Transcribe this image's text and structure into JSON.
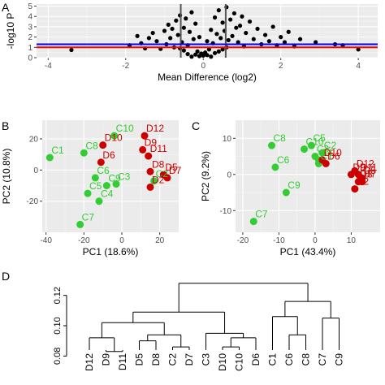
{
  "figure": {
    "colors": {
      "panel_bg": "#ebebeb",
      "grid_major": "#ffffff",
      "grid_minor": "#f5f5f5",
      "point_black": "#000000",
      "group_c": "#33cc33",
      "group_d": "#cc0000",
      "line_blue": "#0000ff",
      "line_red": "#ff0000",
      "vline_gray": "#555555",
      "tick_text": "#4d4d4d",
      "axis_text": "#000000"
    }
  },
  "chart_data": [
    {
      "panel": "A",
      "type": "scatter",
      "title": "",
      "xlabel": "Mean Difference (log2)",
      "ylabel": "-log10 P",
      "xlim": [
        -4.3,
        4.5
      ],
      "ylim": [
        0,
        5.2
      ],
      "xticks": [
        -4,
        -2,
        0,
        2,
        4
      ],
      "yticks": [
        0,
        1,
        2,
        3,
        4,
        5
      ],
      "grid": true,
      "hlines": [
        {
          "y": 1.3,
          "color": "#0000ff"
        },
        {
          "y": 1.0,
          "color": "#ff0000"
        }
      ],
      "vlines": [
        {
          "x": -0.58,
          "color": "#555555"
        },
        {
          "x": 0.58,
          "color": "#555555"
        }
      ],
      "points": [
        [
          -3.4,
          0.75
        ],
        [
          -1.9,
          1.2
        ],
        [
          -1.7,
          2.1
        ],
        [
          -1.6,
          1.4
        ],
        [
          -1.5,
          0.9
        ],
        [
          -1.4,
          1.9
        ],
        [
          -1.3,
          2.4
        ],
        [
          -1.2,
          1.6
        ],
        [
          -1.1,
          0.85
        ],
        [
          -1.0,
          2.6
        ],
        [
          -0.95,
          1.3
        ],
        [
          -0.9,
          3.2
        ],
        [
          -0.85,
          1.9
        ],
        [
          -0.8,
          2.8
        ],
        [
          -0.75,
          1.0
        ],
        [
          -0.7,
          3.6
        ],
        [
          -0.65,
          2.2
        ],
        [
          -0.6,
          4.1
        ],
        [
          -0.55,
          1.5
        ],
        [
          -0.5,
          2.9
        ],
        [
          -0.45,
          3.8
        ],
        [
          -0.4,
          1.2
        ],
        [
          -0.35,
          2.5
        ],
        [
          -0.3,
          4.4
        ],
        [
          -0.25,
          1.8
        ],
        [
          -0.2,
          3.3
        ],
        [
          -0.15,
          0.6
        ],
        [
          -0.1,
          2.0
        ],
        [
          -0.05,
          0.4
        ],
        [
          0.0,
          0.2
        ],
        [
          0.05,
          0.5
        ],
        [
          0.1,
          1.6
        ],
        [
          0.15,
          0.8
        ],
        [
          0.2,
          2.7
        ],
        [
          0.25,
          1.4
        ],
        [
          0.3,
          3.9
        ],
        [
          0.35,
          2.3
        ],
        [
          0.4,
          4.6
        ],
        [
          0.45,
          1.9
        ],
        [
          0.5,
          3.4
        ],
        [
          0.55,
          2.6
        ],
        [
          0.6,
          4.9
        ],
        [
          0.65,
          1.7
        ],
        [
          0.7,
          3.7
        ],
        [
          0.75,
          2.1
        ],
        [
          0.8,
          4.3
        ],
        [
          0.85,
          2.9
        ],
        [
          0.9,
          1.5
        ],
        [
          0.95,
          3.1
        ],
        [
          1.0,
          4.0
        ],
        [
          1.05,
          1.1
        ],
        [
          1.1,
          2.4
        ],
        [
          1.2,
          3.5
        ],
        [
          1.3,
          1.8
        ],
        [
          1.4,
          2.8
        ],
        [
          1.5,
          1.3
        ],
        [
          1.6,
          2.2
        ],
        [
          1.7,
          1.6
        ],
        [
          1.8,
          3.0
        ],
        [
          1.9,
          1.2
        ],
        [
          2.0,
          2.0
        ],
        [
          2.1,
          1.5
        ],
        [
          2.2,
          2.5
        ],
        [
          2.35,
          1.1
        ],
        [
          2.5,
          1.8
        ],
        [
          2.9,
          1.5
        ],
        [
          3.4,
          1.3
        ],
        [
          3.6,
          1.2
        ],
        [
          4.0,
          0.8
        ],
        [
          -0.3,
          0.1
        ],
        [
          -0.2,
          0.3
        ],
        [
          -0.1,
          0.15
        ],
        [
          0.1,
          0.25
        ],
        [
          0.2,
          0.1
        ],
        [
          0.3,
          0.45
        ],
        [
          -0.4,
          0.35
        ],
        [
          0.4,
          0.6
        ],
        [
          -0.5,
          0.7
        ],
        [
          0.5,
          0.8
        ],
        [
          -0.6,
          0.9
        ],
        [
          0.6,
          1.0
        ]
      ]
    },
    {
      "panel": "B",
      "type": "scatter",
      "title": "",
      "xlabel": "PC1 (18.6%)",
      "ylabel": "PC2 (10.8%)",
      "xlim": [
        -42,
        30
      ],
      "ylim": [
        -40,
        32
      ],
      "xticks": [
        -40,
        -20,
        0,
        20
      ],
      "yticks": [
        -20,
        0,
        20
      ],
      "grid": true,
      "points": [
        {
          "label": "C1",
          "x": -38,
          "y": 8,
          "group": "C"
        },
        {
          "label": "C8",
          "x": -20,
          "y": 11,
          "group": "C"
        },
        {
          "label": "C10",
          "x": -4,
          "y": 22,
          "group": "C"
        },
        {
          "label": "C6",
          "x": -14,
          "y": -5,
          "group": "C"
        },
        {
          "label": "C9",
          "x": -8,
          "y": -10,
          "group": "C"
        },
        {
          "label": "C3",
          "x": -3,
          "y": -9,
          "group": "C"
        },
        {
          "label": "C2",
          "x": 17,
          "y": -7,
          "group": "C"
        },
        {
          "label": "C7",
          "x": -22,
          "y": -35,
          "group": "C"
        },
        {
          "label": "C5",
          "x": -18,
          "y": -15,
          "group": "C"
        },
        {
          "label": "C4",
          "x": -12,
          "y": -20,
          "group": "C"
        },
        {
          "label": "D10",
          "x": -10,
          "y": 16,
          "group": "D"
        },
        {
          "label": "D6",
          "x": -11,
          "y": 5,
          "group": "D"
        },
        {
          "label": "D12",
          "x": 12,
          "y": 22,
          "group": "D"
        },
        {
          "label": "D9",
          "x": 11,
          "y": 13,
          "group": "D"
        },
        {
          "label": "D11",
          "x": 14,
          "y": 9,
          "group": "D"
        },
        {
          "label": "D8",
          "x": 15,
          "y": -1,
          "group": "D"
        },
        {
          "label": "D5",
          "x": 22,
          "y": -3,
          "group": "D"
        },
        {
          "label": "D7",
          "x": 24,
          "y": -5,
          "group": "D"
        },
        {
          "label": "D2",
          "x": 15,
          "y": -11,
          "group": "D"
        }
      ]
    },
    {
      "panel": "C",
      "type": "scatter",
      "title": "",
      "xlabel": "PC1 (43.4%)",
      "ylabel": "PC2 (9.2%)",
      "xlim": [
        -22,
        18
      ],
      "ylim": [
        -16,
        15
      ],
      "xticks": [
        -20,
        -10,
        0,
        10
      ],
      "yticks": [
        -10,
        0,
        10
      ],
      "grid": true,
      "points": [
        {
          "label": "C8",
          "x": -12,
          "y": 8,
          "group": "C"
        },
        {
          "label": "C6",
          "x": -11,
          "y": 2,
          "group": "C"
        },
        {
          "label": "C9",
          "x": -8,
          "y": -5,
          "group": "C"
        },
        {
          "label": "C7",
          "x": -17,
          "y": -13,
          "group": "C"
        },
        {
          "label": "C10",
          "x": -3,
          "y": 7,
          "group": "C"
        },
        {
          "label": "C5",
          "x": -1,
          "y": 8,
          "group": "C"
        },
        {
          "label": "C3",
          "x": 0,
          "y": 5,
          "group": "C"
        },
        {
          "label": "C1",
          "x": 1,
          "y": 3,
          "group": "C"
        },
        {
          "label": "C2",
          "x": 2,
          "y": 6,
          "group": "C"
        },
        {
          "label": "C4",
          "x": 1,
          "y": 4,
          "group": "C"
        },
        {
          "label": "D10",
          "x": 2,
          "y": 4,
          "group": "D"
        },
        {
          "label": "D6",
          "x": 3,
          "y": 3,
          "group": "D"
        },
        {
          "label": "D12",
          "x": 11,
          "y": 1,
          "group": "D"
        },
        {
          "label": "D5",
          "x": 13,
          "y": -1,
          "group": "D"
        },
        {
          "label": "D11",
          "x": 12,
          "y": 0,
          "group": "D"
        },
        {
          "label": "D9",
          "x": 10,
          "y": 0,
          "group": "D"
        },
        {
          "label": "D8",
          "x": 12,
          "y": -2,
          "group": "D"
        },
        {
          "label": "D7",
          "x": 13,
          "y": -2,
          "group": "D"
        },
        {
          "label": "D2",
          "x": 11,
          "y": -4,
          "group": "D"
        }
      ]
    },
    {
      "panel": "D",
      "type": "dendrogram",
      "title": "",
      "xlabel": "",
      "ylabel": "",
      "ylim": [
        0.07,
        0.13
      ],
      "yticks": [
        0.08,
        0.1,
        0.12
      ],
      "leaves": [
        "D12",
        "D9",
        "D11",
        "D5",
        "D8",
        "C2",
        "D7",
        "C3",
        "D10",
        "C10",
        "D6",
        "C1",
        "C6",
        "C8",
        "C7",
        "C9"
      ],
      "merges": [
        {
          "a": "D9",
          "b": "D11",
          "height": 0.083
        },
        {
          "a": "D12",
          "b": "(D9,D11)",
          "height": 0.092
        },
        {
          "a": "D5",
          "b": "D8",
          "height": 0.09
        },
        {
          "a": "C2",
          "b": "D7",
          "height": 0.086
        },
        {
          "a": "(D5,D8)",
          "b": "(C2,D7)",
          "height": 0.094
        },
        {
          "a": "(D12,D9,D11)",
          "b": "(D5,D8,C2,D7)",
          "height": 0.102
        },
        {
          "a": "D10",
          "b": "C10",
          "height": 0.086
        },
        {
          "a": "(D10,C10)",
          "b": "D6",
          "height": 0.092
        },
        {
          "a": "C3",
          "b": "(D10,C10,D6)",
          "height": 0.095
        },
        {
          "a": "(D12 ... D7)",
          "b": "(C3 ... D6)",
          "height": 0.109
        },
        {
          "a": "C6",
          "b": "C8",
          "height": 0.094
        },
        {
          "a": "C1",
          "b": "(C6,C8)",
          "height": 0.106
        },
        {
          "a": "C7",
          "b": "C9",
          "height": 0.105
        },
        {
          "a": "(C1,C6,C8)",
          "b": "(C7,C9)",
          "height": 0.116
        },
        {
          "a": "D-cluster",
          "b": "C-cluster",
          "height": 0.128
        }
      ]
    }
  ]
}
